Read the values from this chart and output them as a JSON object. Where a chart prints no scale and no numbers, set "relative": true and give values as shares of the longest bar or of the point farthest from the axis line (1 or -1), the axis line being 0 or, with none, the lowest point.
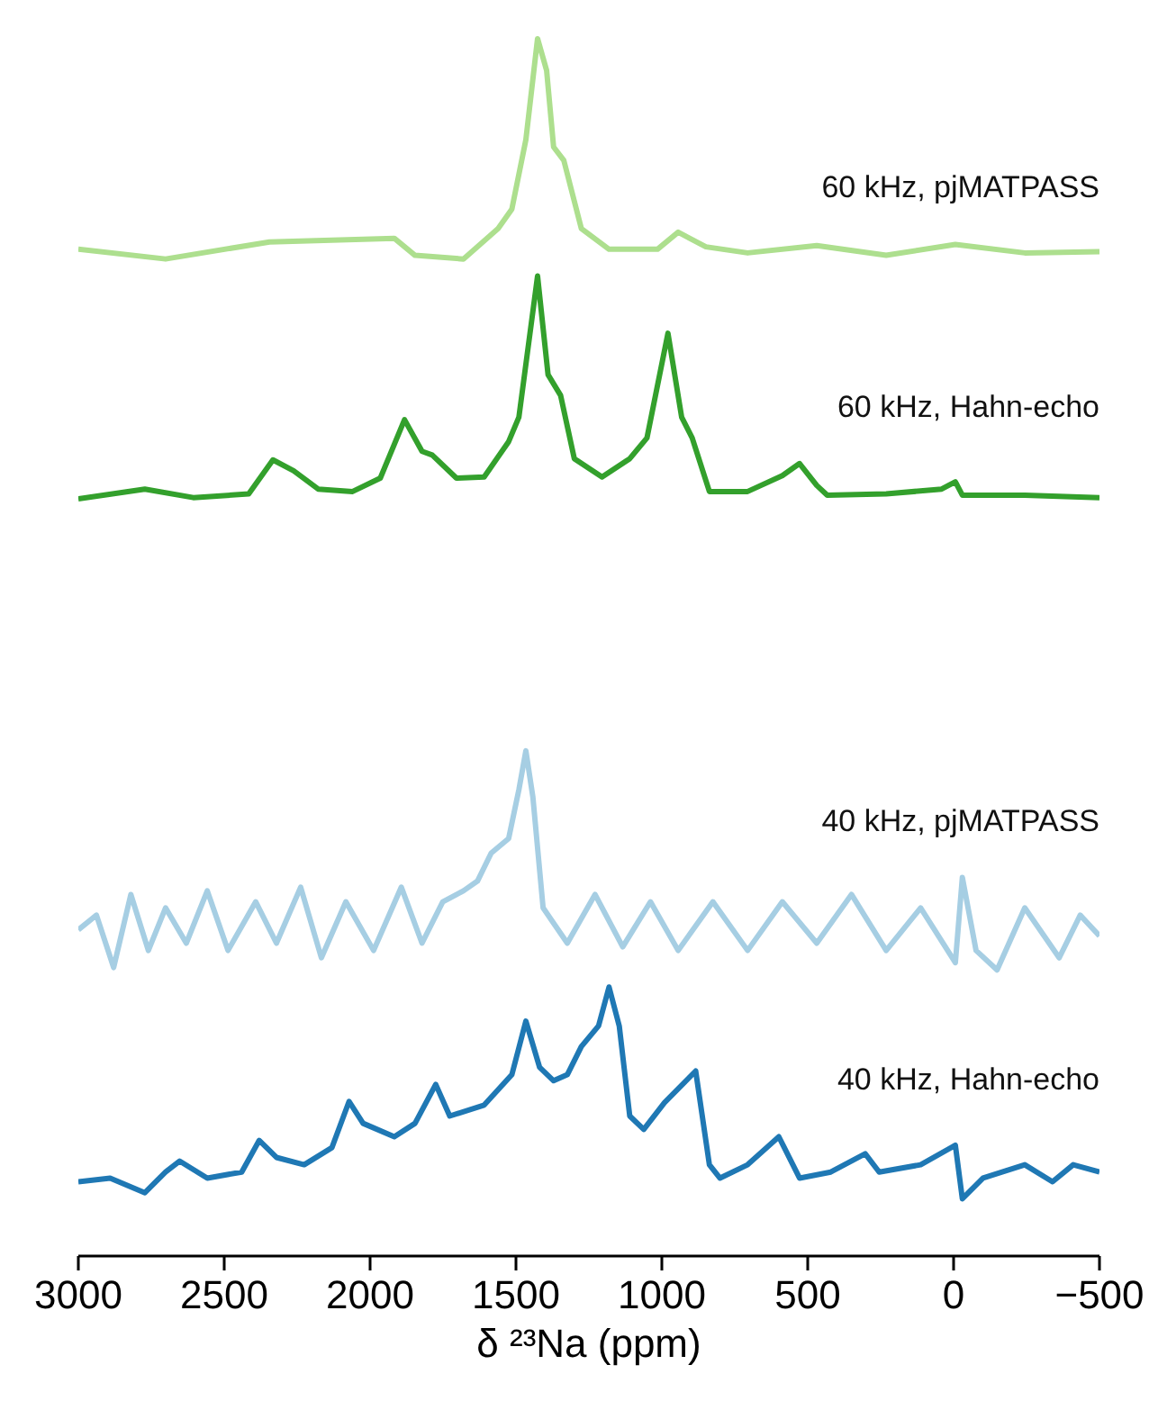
{
  "chart_data": {
    "type": "line",
    "relative": true,
    "xlabel": "δ ²³Na (ppm)",
    "xlim": [
      3000,
      -500
    ],
    "xticks": [
      3000,
      2500,
      2000,
      1500,
      1000,
      500,
      0,
      {
        "value": -500,
        "label": "−500"
      }
    ],
    "grid": false,
    "legend": false,
    "marker": "none",
    "line_style": "solid",
    "series": [
      {
        "name": "60 kHz, pjMATPASS",
        "color": "#addf8e",
        "x": [
          3000,
          2701,
          2345,
          1917,
          1846,
          1680,
          1561,
          1514,
          1466,
          1426,
          1395,
          1371,
          1336,
          1276,
          1181,
          1015,
          944,
          849,
          706,
          469,
          231,
          -6,
          -244,
          -500
        ],
        "values": [
          0.827,
          0.819,
          0.833,
          0.836,
          0.822,
          0.819,
          0.844,
          0.86,
          0.917,
          1.0,
          0.974,
          0.911,
          0.9,
          0.844,
          0.827,
          0.827,
          0.841,
          0.829,
          0.824,
          0.83,
          0.822,
          0.831,
          0.824,
          0.825
        ]
      },
      {
        "name": "60 kHz, Hahn-echo",
        "color": "#33a02c",
        "x": [
          3000,
          2772,
          2606,
          2416,
          2333,
          2262,
          2178,
          2060,
          1965,
          1882,
          1822,
          1787,
          1704,
          1609,
          1525,
          1490,
          1426,
          1390,
          1347,
          1300,
          1205,
          1110,
          1051,
          979,
          932,
          896,
          837,
          706,
          587,
          528,
          469,
          433,
          231,
          41,
          -6,
          -30,
          -244,
          -500
        ],
        "values": [
          0.622,
          0.63,
          0.623,
          0.626,
          0.654,
          0.645,
          0.63,
          0.628,
          0.639,
          0.687,
          0.661,
          0.658,
          0.639,
          0.64,
          0.669,
          0.689,
          0.805,
          0.724,
          0.707,
          0.655,
          0.64,
          0.655,
          0.672,
          0.758,
          0.689,
          0.672,
          0.628,
          0.628,
          0.641,
          0.651,
          0.633,
          0.625,
          0.626,
          0.63,
          0.636,
          0.625,
          0.625,
          0.623
        ]
      },
      {
        "name": "40 kHz, pjMATPASS",
        "color": "#a6cee3",
        "x": [
          3000,
          2938,
          2879,
          2820,
          2760,
          2701,
          2630,
          2558,
          2487,
          2392,
          2321,
          2238,
          2167,
          2083,
          1988,
          1893,
          1822,
          1751,
          1680,
          1632,
          1585,
          1525,
          1490,
          1466,
          1442,
          1407,
          1324,
          1229,
          1134,
          1039,
          944,
          825,
          706,
          587,
          469,
          350,
          231,
          113,
          -6,
          -30,
          -77,
          -149,
          -244,
          -362,
          -434,
          -500
        ],
        "values": [
          0.268,
          0.28,
          0.237,
          0.297,
          0.251,
          0.286,
          0.257,
          0.3,
          0.251,
          0.291,
          0.257,
          0.303,
          0.245,
          0.291,
          0.251,
          0.303,
          0.257,
          0.291,
          0.3,
          0.308,
          0.331,
          0.343,
          0.383,
          0.415,
          0.377,
          0.286,
          0.257,
          0.297,
          0.254,
          0.291,
          0.251,
          0.291,
          0.251,
          0.291,
          0.257,
          0.297,
          0.251,
          0.286,
          0.241,
          0.311,
          0.251,
          0.235,
          0.286,
          0.245,
          0.28,
          0.263
        ]
      },
      {
        "name": "40 kHz, Hahn-echo",
        "color": "#1f78b4",
        "x": [
          3000,
          2891,
          2772,
          2701,
          2653,
          2558,
          2440,
          2380,
          2321,
          2226,
          2131,
          2072,
          2024,
          1917,
          1846,
          1775,
          1727,
          1609,
          1514,
          1466,
          1419,
          1371,
          1324,
          1276,
          1217,
          1181,
          1146,
          1110,
          1062,
          991,
          884,
          837,
          801,
          706,
          599,
          528,
          421,
          303,
          255,
          113,
          -6,
          -30,
          -101,
          -244,
          -339,
          -410,
          -500
        ],
        "values": [
          0.061,
          0.064,
          0.052,
          0.069,
          0.078,
          0.064,
          0.069,
          0.095,
          0.081,
          0.075,
          0.089,
          0.127,
          0.109,
          0.098,
          0.109,
          0.141,
          0.115,
          0.124,
          0.149,
          0.193,
          0.155,
          0.144,
          0.149,
          0.172,
          0.189,
          0.221,
          0.189,
          0.115,
          0.104,
          0.126,
          0.152,
          0.075,
          0.064,
          0.075,
          0.098,
          0.064,
          0.069,
          0.084,
          0.069,
          0.075,
          0.091,
          0.047,
          0.064,
          0.075,
          0.061,
          0.075,
          0.069
        ]
      }
    ]
  }
}
